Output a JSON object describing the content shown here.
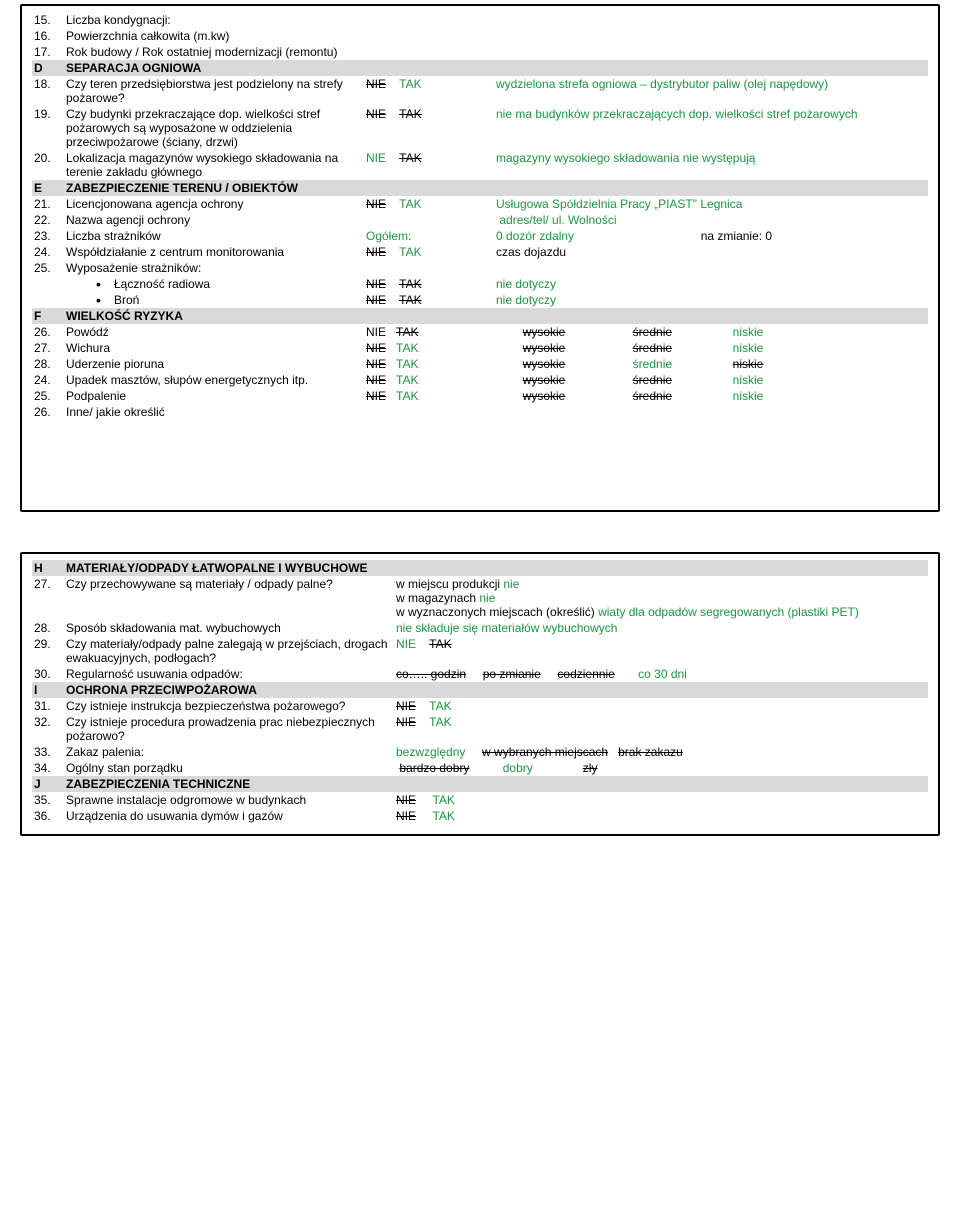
{
  "box1": {
    "rows_top": [
      {
        "num": "15.",
        "label": "Liczba kondygnacji:"
      },
      {
        "num": "16.",
        "label": "Powierzchnia całkowita (m.kw)"
      },
      {
        "num": "17.",
        "label": "Rok budowy / Rok ostatniej modernizacji (remontu)"
      }
    ],
    "sectionD": {
      "letter": "D",
      "title": "SEPARACJA OGNIOWA"
    },
    "r18": {
      "num": "18.",
      "label": "Czy teren przedsiębiorstwa jest podzielony na strefy pożarowe?",
      "nie": "NIE",
      "tak": "TAK",
      "note": "wydzielona strefa ogniowa – dystrybutor paliw (olej napędowy)"
    },
    "r19": {
      "num": "19.",
      "label": "Czy budynki przekraczające dop. wielkości stref pożarowych są wyposażone w oddzielenia przeciwpożarowe (ściany, drzwi)",
      "nie": "NIE",
      "tak": "TAK",
      "note": "nie ma budynków przekraczających dop. wielkości stref pożarowych"
    },
    "r20": {
      "num": "20.",
      "label": "Lokalizacja magazynów wysokiego składowania na terenie zakładu głównego",
      "nie": "NIE",
      "tak": "TAK",
      "note": "magazyny wysokiego składowania nie występują"
    },
    "sectionE": {
      "letter": "E",
      "title": "ZABEZPIECZENIE TERENU / OBIEKTÓW"
    },
    "r21": {
      "num": "21.",
      "label": "Licencjonowana agencja ochrony",
      "nie": "NIE",
      "tak": "TAK",
      "note": "Usługowa Spółdzielnia Pracy „PIAST\" Legnica"
    },
    "r22": {
      "num": "22.",
      "label": "Nazwa agencji ochrony",
      "note": "adres/tel/ ul. Wolności"
    },
    "r23": {
      "num": "23.",
      "label": "Liczba strażników",
      "ogolem": "Ogółem:",
      "val": "0  dozór zdalny",
      "zmiana": "na zmianie: 0"
    },
    "r24": {
      "num": "24.",
      "label": "Współdziałanie z centrum monitorowania",
      "nie": "NIE",
      "tak": "TAK",
      "note": "czas dojazdu"
    },
    "r25": {
      "num": "25.",
      "label": "Wyposażenie strażników:"
    },
    "r25a": {
      "label": "Łączność radiowa",
      "nie": "NIE",
      "tak": "TAK",
      "note": "nie dotyczy"
    },
    "r25b": {
      "label": "Broń",
      "nie": "NIE",
      "tak": "TAK",
      "note": "nie dotyczy"
    },
    "sectionF": {
      "letter": "F",
      "title": "WIELKOŚĆ RYZYKA"
    },
    "risk": [
      {
        "num": "26.",
        "label": "Powódź",
        "nie": "NIE",
        "tak": "TAK",
        "w": "wysokie",
        "s": "średnie",
        "n": "niskie",
        "nie_s": false,
        "tak_s": true,
        "w_s": true,
        "s_s": true,
        "n_g": true
      },
      {
        "num": "27.",
        "label": "Wichura",
        "nie": "NIE",
        "tak": "TAK",
        "w": "wysokie",
        "s": "średnie",
        "n": "niskie",
        "nie_s": true,
        "tak_s": false,
        "w_s": true,
        "s_s": true,
        "n_g": true
      },
      {
        "num": "28.",
        "label": "Uderzenie pioruna",
        "nie": "NIE",
        "tak": "TAK",
        "w": "wysokie",
        "s": "średnie",
        "n": "niskie",
        "nie_s": true,
        "tak_s": false,
        "w_s": true,
        "s_s": false,
        "s_g": true,
        "n_s": true
      },
      {
        "num": "24.",
        "label": "Upadek masztów, słupów energetycznych itp.",
        "nie": "NIE",
        "tak": "TAK",
        "w": "wysokie",
        "s": "średnie",
        "n": "niskie",
        "nie_s": true,
        "tak_s": false,
        "w_s": true,
        "s_s": true,
        "n_g": true
      },
      {
        "num": "25.",
        "label": "Podpalenie",
        "nie": "NIE",
        "tak": "TAK",
        "w": "wysokie",
        "s": "średnie",
        "n": "niskie",
        "nie_s": true,
        "tak_s": false,
        "w_s": true,
        "s_s": true,
        "n_g": true
      }
    ],
    "r26b": {
      "num": "26.",
      "label": "Inne/ jakie określić"
    }
  },
  "box2": {
    "sectionH": {
      "letter": "H",
      "title": "MATERIAŁY/ODPADY ŁATWOPALNE I WYBUCHOWE"
    },
    "r27": {
      "num": "27.",
      "label": "Czy przechowywane są materiały / odpady palne?",
      "lines": [
        {
          "pre": "w miejscu produkcji ",
          "g": "nie"
        },
        {
          "pre": "w magazynach ",
          "g": "nie"
        },
        {
          "pre": "w wyznaczonych miejscach (określić) ",
          "g": "wiaty dla odpadów segregowanych (plastiki PET)"
        }
      ]
    },
    "r28": {
      "num": "28.",
      "label": "Sposób składowania mat. wybuchowych",
      "note": "nie składuje się  materiałów wybuchowych"
    },
    "r29": {
      "num": "29.",
      "label": "Czy  materiały/odpady palne zalegają w przejściach, drogach ewakuacyjnych, podłogach?",
      "nie": "NIE",
      "tak": "TAK"
    },
    "r30": {
      "num": "30.",
      "label": "Regularność usuwania odpadów:",
      "o1": "co….. godzin",
      "o2": "po zmianie",
      "o3": "codziennie",
      "o4": "co 30 dni"
    },
    "sectionI": {
      "letter": "I",
      "title": "OCHRONA PRZECIWPOŻAROWA"
    },
    "r31": {
      "num": "31.",
      "label": "Czy istnieje instrukcja bezpieczeństwa pożarowego?",
      "nie": "NIE",
      "tak": "TAK"
    },
    "r32": {
      "num": "32.",
      "label": "Czy istnieje procedura prowadzenia prac niebezpiecznych pożarowo?",
      "nie": "NIE",
      "tak": "TAK"
    },
    "r33": {
      "num": "33.",
      "label": "Zakaz palenia:",
      "o1": "bezwzględny",
      "o2": "w wybranych miejscach",
      "o3": "brak zakazu"
    },
    "r34": {
      "num": "34.",
      "label": "Ogólny stan porządku",
      "o1": "bardzo dobry",
      "o2": "dobry",
      "o3": "zły"
    },
    "sectionJ": {
      "letter": "J",
      "title": "ZABEZPIECZENIA TECHNICZNE"
    },
    "r35": {
      "num": "35.",
      "label": "Sprawne instalacje odgromowe w budynkach",
      "nie": "NIE",
      "tak": "TAK"
    },
    "r36": {
      "num": "36.",
      "label": "Urządzenia do usuwania dymów i gazów",
      "nie": "NIE",
      "tak": "TAK"
    }
  }
}
